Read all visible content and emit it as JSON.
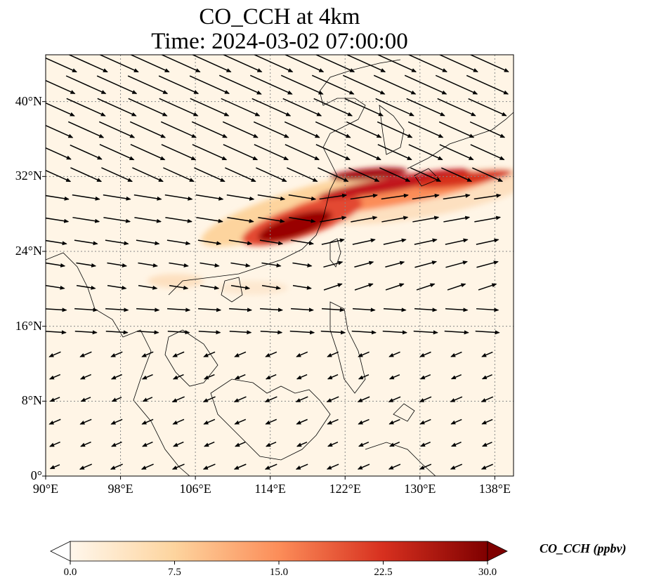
{
  "title": {
    "line1": "CO_CCH at 4km",
    "line2": "Time: 2024-03-02 07:00:00"
  },
  "map": {
    "extent": {
      "lon": [
        90,
        140
      ],
      "lat": [
        0,
        45
      ]
    },
    "x_ticks": [
      "90°E",
      "98°E",
      "106°E",
      "114°E",
      "122°E",
      "130°E",
      "138°E"
    ],
    "x_tick_values": [
      90,
      98,
      106,
      114,
      122,
      130,
      138
    ],
    "y_ticks": [
      "0°",
      "8°N",
      "16°N",
      "24°N",
      "32°N",
      "40°N"
    ],
    "y_tick_values": [
      0,
      8,
      16,
      24,
      32,
      40
    ],
    "gridlines": true,
    "background_color": "#fff5e6",
    "wind_vectors": "westerly flow north of ~20°N, weak easterlies/northeasterlies south",
    "plume": "CO_CCH maximum along ~25–32°N from 108°E to 140°E, peak near 117–120°E, 27°N"
  },
  "colorbar": {
    "label": "CO_CCH (ppbv)",
    "ticks": [
      "0.0",
      "7.5",
      "15.0",
      "22.5",
      "30.0"
    ],
    "tick_values": [
      0,
      7.5,
      15,
      22.5,
      30
    ],
    "range": [
      0,
      30
    ],
    "extend": "both",
    "colormap": "OrRd",
    "colors": [
      "#fff7ec",
      "#fdd49e",
      "#fc8d59",
      "#d7301f",
      "#7f0000"
    ]
  }
}
